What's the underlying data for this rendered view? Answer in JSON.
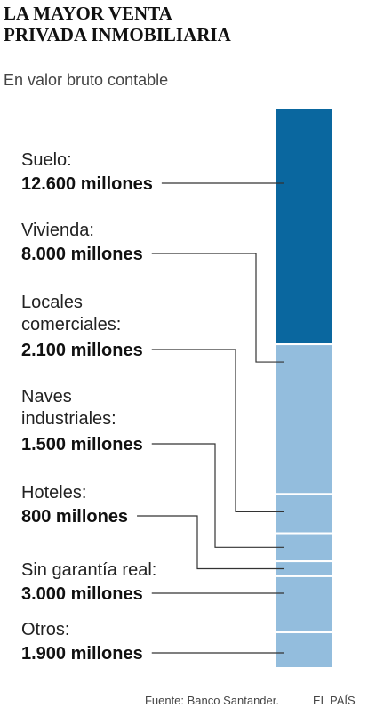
{
  "chart_data": {
    "type": "stacked-bar",
    "title": "LA MAYOR VENTA\nPRIVADA INMOBILIARIA",
    "subtitle": "En valor bruto contable",
    "source": "Fuente: Banco Santander.",
    "credit": "EL PAÍS",
    "series": [
      {
        "name": "Suelo:",
        "color": "#0a679f",
        "values": [
          12600
        ],
        "value_labels": [
          "12.600 millones"
        ]
      },
      {
        "name": "Vivienda:",
        "color": "#93bddd",
        "values": [
          8000
        ],
        "value_labels": [
          "8.000 millones"
        ]
      },
      {
        "name": "Locales\ncomerciales:",
        "color": "#93bddd",
        "values": [
          2100
        ],
        "value_labels": [
          "2.100 millones"
        ]
      },
      {
        "name": "Naves\nindustriales:",
        "color": "#93bddd",
        "values": [
          1500
        ],
        "value_labels": [
          "1.500 millones"
        ]
      },
      {
        "name": "Hoteles:",
        "color": "#93bddd",
        "values": [
          800
        ],
        "value_labels": [
          "800 millones"
        ]
      },
      {
        "name": "Sin garantía real:",
        "color": "#93bddd",
        "values": [
          3000
        ],
        "value_labels": [
          "3.000 millones"
        ]
      },
      {
        "name": "Otros:",
        "color": "#93bddd",
        "values": [
          1900
        ],
        "value_labels": [
          "1.900 millones"
        ]
      }
    ]
  }
}
